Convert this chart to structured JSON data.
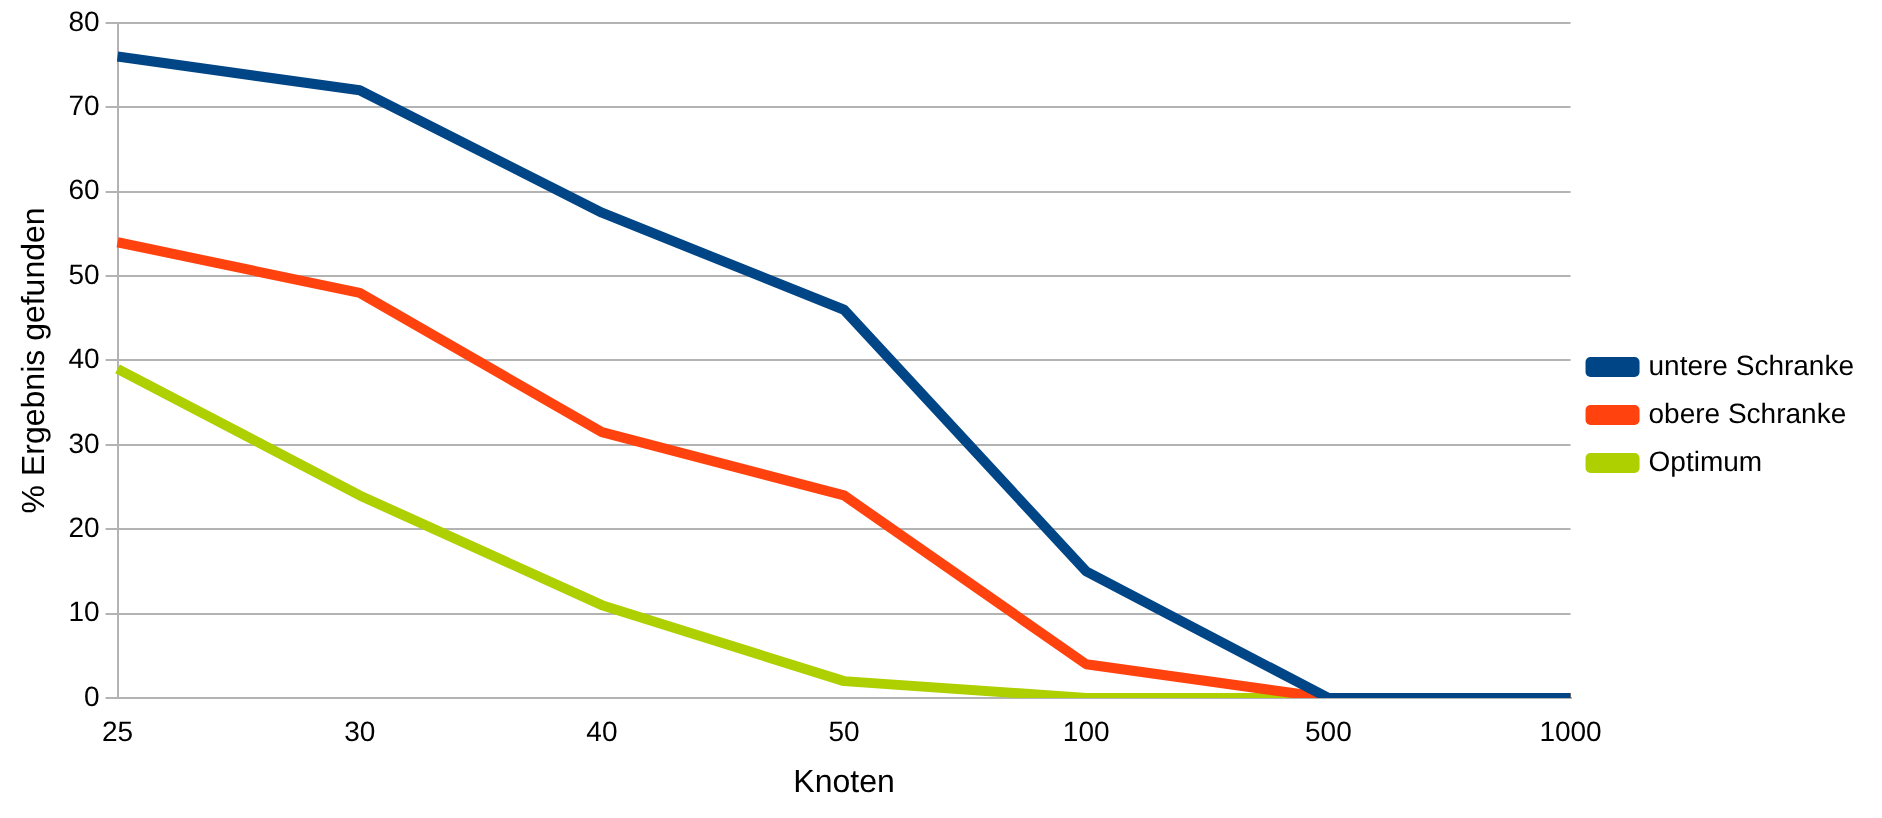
{
  "chart_data": {
    "type": "line",
    "xlabel": "Knoten",
    "ylabel": "% Ergebnis gefunden",
    "categories": [
      "25",
      "30",
      "40",
      "50",
      "100",
      "500",
      "1000"
    ],
    "series": [
      {
        "name": "untere Schranke",
        "color": "#004586",
        "values": [
          76,
          72,
          57.5,
          46,
          15,
          0,
          0
        ]
      },
      {
        "name": "obere Schranke",
        "color": "#ff420e",
        "values": [
          54,
          48,
          31.5,
          24,
          4,
          0,
          0
        ]
      },
      {
        "name": "Optimum",
        "color": "#aecf00",
        "values": [
          39,
          24,
          11,
          2,
          0,
          0,
          0
        ]
      }
    ],
    "ylim": [
      0,
      80
    ],
    "yticks": [
      0,
      10,
      20,
      30,
      40,
      50,
      60,
      70,
      80
    ],
    "grid": "y",
    "legend": "right",
    "marker": "none",
    "line_style": "solid"
  }
}
